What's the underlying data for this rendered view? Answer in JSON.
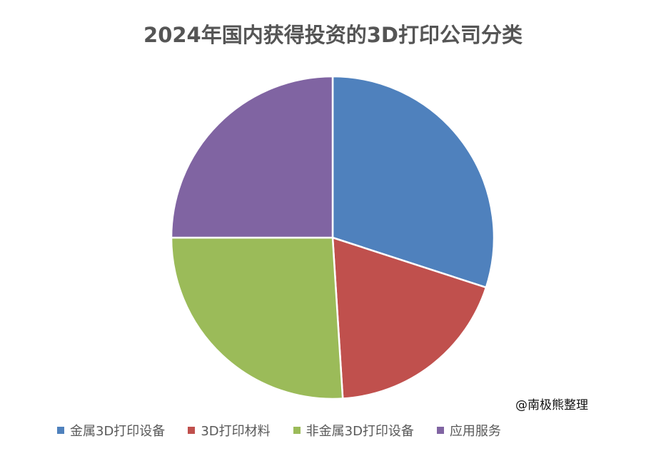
{
  "chart_data": {
    "type": "pie",
    "title": "2024年国内获得投资的3D打印公司分类",
    "categories": [
      "金属3D打印设备",
      "3D打印材料",
      "非金属3D打印设备",
      "应用服务"
    ],
    "values": [
      30,
      19,
      26,
      25
    ],
    "colors": [
      "#4F81BD",
      "#C0504D",
      "#9BBB59",
      "#8064A2"
    ],
    "start_angle_deg": 0,
    "direction": "clockwise",
    "legend_position": "bottom"
  },
  "watermark": "@南极熊整理"
}
